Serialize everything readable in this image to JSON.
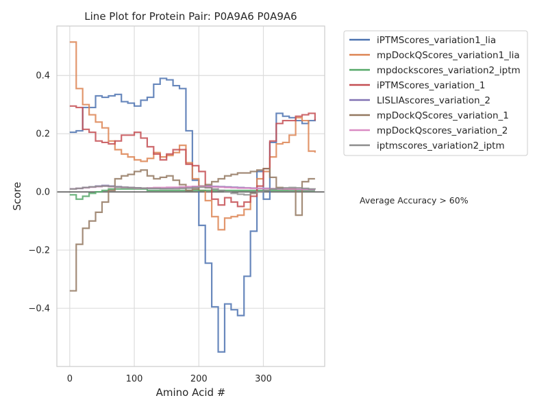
{
  "chart_data": {
    "type": "line",
    "title": "Line Plot for Protein Pair: P0A9A6 P0A9A6",
    "xlabel": "Amino Acid #",
    "ylabel": "Score",
    "xlim": [
      -20,
      395
    ],
    "ylim": [
      -0.6,
      0.57
    ],
    "xticks": [
      0,
      100,
      200,
      300
    ],
    "yticks": [
      -0.4,
      -0.2,
      0.0,
      0.2,
      0.4
    ],
    "xtick_labels": [
      "0",
      "100",
      "200",
      "300"
    ],
    "ytick_labels": [
      "−0.4",
      "−0.2",
      "0.0",
      "0.2",
      "0.4"
    ],
    "grid": true,
    "legend_position": "outside-right-top",
    "annotation": "Average Accuracy > 60%",
    "series": [
      {
        "name": "iPTMScores_variation1_lia",
        "color": "#4c72b0",
        "x": [
          0,
          10,
          20,
          30,
          40,
          50,
          60,
          70,
          80,
          90,
          100,
          110,
          120,
          130,
          140,
          150,
          160,
          170,
          180,
          190,
          200,
          210,
          220,
          230,
          240,
          250,
          260,
          270,
          280,
          290,
          300,
          310,
          320,
          330,
          340,
          350,
          360,
          370,
          380
        ],
        "y": [
          0.205,
          0.21,
          0.29,
          0.29,
          0.33,
          0.325,
          0.33,
          0.335,
          0.31,
          0.305,
          0.295,
          0.315,
          0.325,
          0.37,
          0.39,
          0.385,
          0.365,
          0.355,
          0.21,
          0.04,
          -0.115,
          -0.245,
          -0.395,
          -0.55,
          -0.385,
          -0.405,
          -0.425,
          -0.29,
          -0.135,
          0.07,
          -0.025,
          0.17,
          0.27,
          0.26,
          0.255,
          0.245,
          0.235,
          0.245,
          0.25
        ]
      },
      {
        "name": "mpDockQScores_variation1_lia",
        "color": "#dd8452",
        "x": [
          0,
          10,
          20,
          30,
          40,
          50,
          60,
          70,
          80,
          90,
          100,
          110,
          120,
          130,
          140,
          150,
          160,
          170,
          180,
          190,
          200,
          210,
          220,
          230,
          240,
          250,
          260,
          270,
          280,
          290,
          300,
          310,
          320,
          330,
          340,
          350,
          360,
          370,
          380
        ],
        "y": [
          0.515,
          0.355,
          0.3,
          0.265,
          0.24,
          0.22,
          0.175,
          0.145,
          0.13,
          0.12,
          0.11,
          0.105,
          0.115,
          0.135,
          0.12,
          0.125,
          0.135,
          0.16,
          0.1,
          0.045,
          0.005,
          -0.03,
          -0.085,
          -0.13,
          -0.09,
          -0.085,
          -0.08,
          -0.06,
          -0.005,
          0.045,
          0.07,
          0.12,
          0.165,
          0.17,
          0.195,
          0.255,
          0.245,
          0.14,
          0.135
        ]
      },
      {
        "name": "mpdockscores_variation2_iptm",
        "color": "#55a868",
        "x": [
          0,
          10,
          20,
          30,
          40,
          50,
          60,
          70,
          80,
          90,
          100,
          110,
          120,
          130,
          140,
          150,
          160,
          170,
          180,
          190,
          200,
          210,
          220,
          230,
          240,
          250,
          260,
          270,
          280,
          290,
          300,
          310,
          320,
          330,
          340,
          350,
          360,
          370,
          380
        ],
        "y": [
          -0.01,
          -0.025,
          -0.015,
          -0.005,
          0.0,
          0.005,
          0.01,
          0.01,
          0.01,
          0.01,
          0.01,
          0.01,
          0.005,
          0.005,
          0.005,
          0.005,
          0.005,
          0.005,
          0.005,
          0.005,
          0.005,
          0.005,
          0.005,
          0.005,
          0.005,
          0.005,
          0.005,
          0.005,
          0.005,
          0.005,
          0.005,
          0.005,
          0.005,
          0.005,
          0.005,
          0.005,
          0.005,
          0.005,
          0.005
        ]
      },
      {
        "name": "iPTMScores_variation_1",
        "color": "#c44e52",
        "x": [
          0,
          10,
          20,
          30,
          40,
          50,
          60,
          70,
          80,
          90,
          100,
          110,
          120,
          130,
          140,
          150,
          160,
          170,
          180,
          190,
          200,
          210,
          220,
          230,
          240,
          250,
          260,
          270,
          280,
          290,
          300,
          310,
          320,
          330,
          340,
          350,
          360,
          370,
          380
        ],
        "y": [
          0.295,
          0.29,
          0.215,
          0.205,
          0.175,
          0.17,
          0.165,
          0.175,
          0.195,
          0.195,
          0.205,
          0.185,
          0.155,
          0.13,
          0.11,
          0.13,
          0.145,
          0.145,
          0.095,
          0.09,
          0.07,
          0.015,
          -0.025,
          -0.045,
          -0.02,
          -0.035,
          -0.05,
          -0.035,
          -0.015,
          0.02,
          0.08,
          0.175,
          0.235,
          0.245,
          0.245,
          0.26,
          0.265,
          0.27,
          0.245
        ]
      },
      {
        "name": "LISLIAscores_variation_2",
        "color": "#8172b3",
        "x": [
          0,
          10,
          20,
          30,
          40,
          50,
          60,
          70,
          80,
          90,
          100,
          110,
          120,
          130,
          140,
          150,
          160,
          170,
          180,
          190,
          200,
          210,
          220,
          230,
          240,
          250,
          260,
          270,
          280,
          290,
          300,
          310,
          320,
          330,
          340,
          350,
          360,
          370,
          380
        ],
        "y": [
          0.01,
          0.012,
          0.015,
          0.017,
          0.02,
          0.022,
          0.02,
          0.018,
          0.016,
          0.015,
          0.014,
          0.013,
          0.012,
          0.012,
          0.012,
          0.013,
          0.014,
          0.015,
          0.016,
          0.018,
          0.02,
          0.02,
          0.019,
          0.018,
          0.017,
          0.016,
          0.015,
          0.014,
          0.013,
          0.012,
          0.012,
          0.011,
          0.011,
          0.01,
          0.01,
          0.009,
          0.009,
          0.008,
          0.008
        ]
      },
      {
        "name": "mpDockQScores_variation_1",
        "color": "#937860",
        "x": [
          0,
          10,
          20,
          30,
          40,
          50,
          60,
          70,
          80,
          90,
          100,
          110,
          120,
          130,
          140,
          150,
          160,
          170,
          180,
          190,
          200,
          210,
          220,
          230,
          240,
          250,
          260,
          270,
          280,
          290,
          300,
          310,
          320,
          330,
          340,
          350,
          360,
          370,
          380
        ],
        "y": [
          -0.34,
          -0.18,
          -0.125,
          -0.1,
          -0.07,
          -0.035,
          0.005,
          0.045,
          0.055,
          0.06,
          0.07,
          0.075,
          0.055,
          0.045,
          0.05,
          0.055,
          0.04,
          0.025,
          0.005,
          0.01,
          0.02,
          0.025,
          0.035,
          0.045,
          0.055,
          0.06,
          0.065,
          0.065,
          0.07,
          0.075,
          0.08,
          0.05,
          0.015,
          0.01,
          0.01,
          -0.08,
          0.035,
          0.045,
          0.045
        ]
      },
      {
        "name": "mpDockQscores_variation_2",
        "color": "#da8bc3",
        "x": [
          0,
          10,
          20,
          30,
          40,
          50,
          60,
          70,
          80,
          90,
          100,
          110,
          120,
          130,
          140,
          150,
          160,
          170,
          180,
          190,
          200,
          210,
          220,
          230,
          240,
          250,
          260,
          270,
          280,
          290,
          300,
          310,
          320,
          330,
          340,
          350,
          360,
          370,
          380
        ],
        "y": [
          0.01,
          0.012,
          0.014,
          0.016,
          0.018,
          0.02,
          0.018,
          0.016,
          0.015,
          0.014,
          0.013,
          0.013,
          0.014,
          0.015,
          0.015,
          0.016,
          0.016,
          0.017,
          0.018,
          0.019,
          0.019,
          0.018,
          0.017,
          0.016,
          0.015,
          0.014,
          0.013,
          0.013,
          0.012,
          0.012,
          0.011,
          0.011,
          0.01,
          0.01,
          0.009,
          0.009,
          0.008,
          0.008,
          0.008
        ]
      },
      {
        "name": "iptmscores_variation2_iptm",
        "color": "#8c8c8c",
        "x": [
          0,
          10,
          20,
          30,
          40,
          50,
          60,
          70,
          80,
          90,
          100,
          110,
          120,
          130,
          140,
          150,
          160,
          170,
          180,
          190,
          200,
          210,
          220,
          230,
          240,
          250,
          260,
          270,
          280,
          290,
          300,
          310,
          320,
          330,
          340,
          350,
          360,
          370,
          380
        ],
        "y": [
          0.01,
          0.012,
          0.015,
          0.017,
          0.019,
          0.02,
          0.019,
          0.017,
          0.016,
          0.015,
          0.014,
          0.013,
          0.012,
          0.012,
          0.011,
          0.011,
          0.011,
          0.012,
          0.013,
          0.015,
          0.016,
          0.014,
          0.01,
          0.005,
          0.0,
          -0.005,
          -0.008,
          -0.01,
          -0.005,
          0.0,
          0.005,
          0.01,
          0.012,
          0.014,
          0.015,
          0.014,
          0.012,
          0.01,
          0.008
        ]
      }
    ]
  }
}
